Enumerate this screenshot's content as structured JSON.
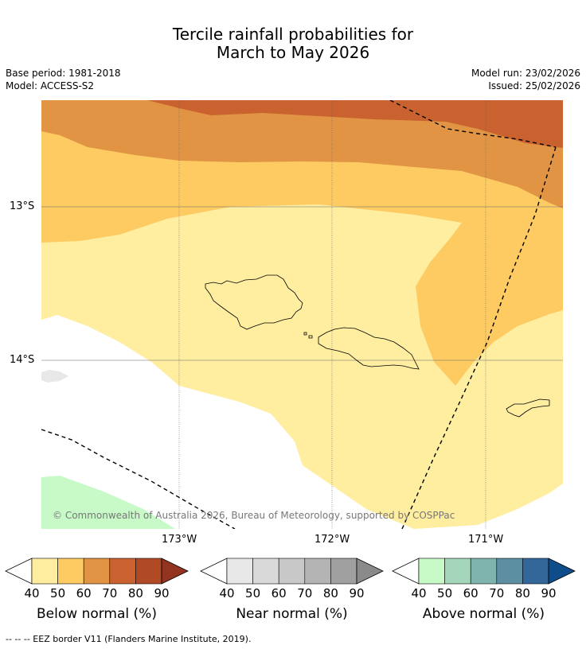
{
  "title": {
    "line1": "Tercile rainfall probabilities for",
    "line2": "March to May 2026"
  },
  "info": {
    "base_period": "Base period: 1981-2018",
    "model": "Model: ACCESS-S2",
    "model_run": "Model run: 23/02/2026",
    "issued": "Issued: 25/02/2026"
  },
  "map": {
    "lat_labels": [
      "13°S",
      "14°S"
    ],
    "lon_labels": [
      "173°W",
      "172°W",
      "171°W"
    ],
    "copyright": "© Commonwealth of Australia 2026, Bureau of Meteorology, supported by COSPPac"
  },
  "colorbars": [
    {
      "name": "below-normal",
      "title": "Below normal (%)",
      "ticks": [
        "40",
        "50",
        "60",
        "70",
        "80",
        "90"
      ],
      "colors": [
        "#ffeda0",
        "#fecb63",
        "#e09444",
        "#c9622e",
        "#b04a26",
        "#923420"
      ]
    },
    {
      "name": "near-normal",
      "title": "Near normal (%)",
      "ticks": [
        "40",
        "50",
        "60",
        "70",
        "80",
        "90"
      ],
      "colors": [
        "#e8e8e8",
        "#d9d9d9",
        "#c8c8c8",
        "#b4b4b4",
        "#a0a0a0",
        "#8a8a8a"
      ]
    },
    {
      "name": "above-normal",
      "title": "Above normal (%)",
      "ticks": [
        "40",
        "50",
        "60",
        "70",
        "80",
        "90"
      ],
      "colors": [
        "#c8fac8",
        "#a3d6bb",
        "#7fb3ae",
        "#5b8fa1",
        "#336699",
        "#0e4d8a"
      ]
    }
  ],
  "colors": {
    "cat_below_40_50": "#ffeda0",
    "cat_below_50_60": "#fecb63",
    "cat_below_60_70": "#e09444",
    "cat_below_70_80": "#c9622e",
    "cat_near_40_50": "#e8e8e8",
    "cat_above_40_50": "#c8fac8"
  },
  "footnote": "--  --  -- EEZ border V11 (Flanders Marine Institute, 2019)."
}
